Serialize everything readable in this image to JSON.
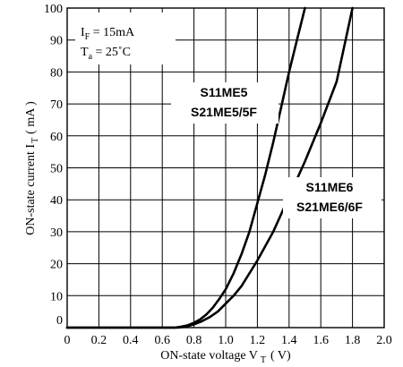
{
  "chart_data": {
    "type": "line",
    "title": "",
    "xlabel": {
      "text": "ON-state voltage V",
      "sub": "T",
      "unit": "( V)"
    },
    "ylabel": {
      "text": "ON-state current I",
      "sub": "T",
      "unit": "( mA )"
    },
    "xlim": [
      0,
      2.0
    ],
    "ylim": [
      0,
      100
    ],
    "x_ticks": [
      "0",
      "0.2",
      "0.4",
      "0.6",
      "0.8",
      "1.0",
      "1.2",
      "1.4",
      "1.6",
      "1.8",
      "2.0"
    ],
    "y_ticks": [
      "0",
      "10",
      "20",
      "30",
      "40",
      "50",
      "60",
      "70",
      "80",
      "90",
      "100"
    ],
    "grid": true,
    "conditions": [
      {
        "main": "I",
        "sub": "F",
        "rest": " = 15mA"
      },
      {
        "main": "T",
        "sub": "a",
        "rest": " = 25˚C"
      }
    ],
    "series": [
      {
        "name": "S11ME5 / S21ME5/5F",
        "labels": [
          "S11ME5",
          "S21ME5/5F"
        ],
        "x": [
          0.0,
          0.68,
          0.72,
          0.76,
          0.8,
          0.84,
          0.88,
          0.92,
          0.96,
          1.0,
          1.05,
          1.1,
          1.15,
          1.2,
          1.25,
          1.3,
          1.35,
          1.4,
          1.45,
          1.5
        ],
        "y": [
          0,
          0,
          0.3,
          0.7,
          1.5,
          2.6,
          4.2,
          6.3,
          9,
          12,
          17,
          23,
          30,
          39,
          48,
          58,
          69,
          80,
          90,
          100
        ]
      },
      {
        "name": "S11ME6 / S21ME6/6F",
        "labels": [
          "S11ME6",
          "S21ME6/6F"
        ],
        "x": [
          0.0,
          0.7,
          0.75,
          0.8,
          0.85,
          0.9,
          0.95,
          1.0,
          1.05,
          1.1,
          1.2,
          1.3,
          1.4,
          1.5,
          1.6,
          1.7,
          1.8
        ],
        "y": [
          0,
          0,
          0.3,
          1,
          2,
          3.3,
          5,
          7.5,
          10,
          13,
          21,
          30,
          41,
          52,
          64,
          77,
          100
        ]
      }
    ]
  }
}
